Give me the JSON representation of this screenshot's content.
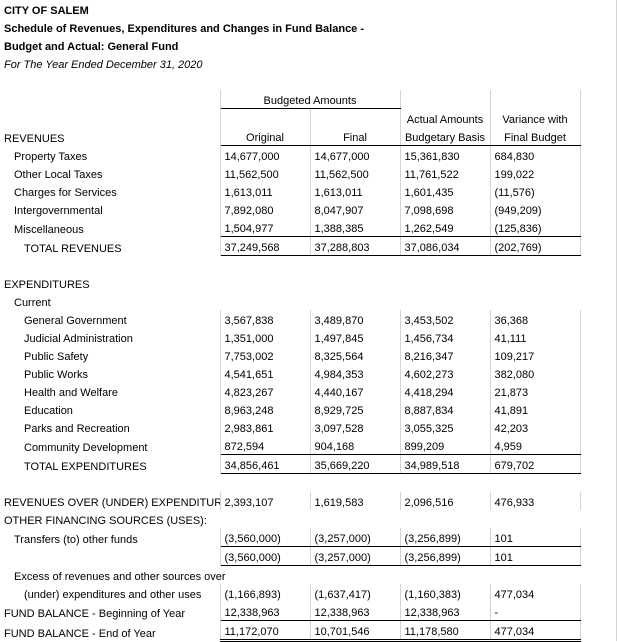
{
  "header": {
    "city": "CITY OF SALEM",
    "title1": "Schedule of Revenues, Expenditures and Changes in Fund Balance -",
    "title2": "Budget and Actual:  General Fund",
    "period": "For The Year Ended December 31, 2020"
  },
  "col_headers": {
    "budgeted": "Budgeted Amounts",
    "original": "Original",
    "final": "Final",
    "actual1": "Actual Amounts",
    "actual2": "Budgetary Basis",
    "var1": "Variance with",
    "var2": "Final Budget"
  },
  "sections": {
    "revenues": "REVENUES",
    "total_revenues": "TOTAL REVENUES",
    "expenditures": "EXPENDITURES",
    "current": "Current",
    "total_expenditures": "TOTAL EXPENDITURES",
    "rev_over": "REVENUES OVER (UNDER) EXPENDITURES",
    "other_fin": "OTHER FINANCING SOURCES (USES):",
    "transfers": "Transfers (to) other funds",
    "excess1": "Excess of revenues and other sources over",
    "excess2": "(under) expenditures and other uses",
    "fb_begin": "FUND BALANCE - Beginning of Year",
    "fb_end": "FUND BALANCE - End of Year"
  },
  "rev": [
    {
      "label": "Property Taxes",
      "o": "14,677,000",
      "f": "14,677,000",
      "a": "15,361,830",
      "v": "684,830"
    },
    {
      "label": "Other Local Taxes",
      "o": "11,562,500",
      "f": "11,562,500",
      "a": "11,761,522",
      "v": "199,022"
    },
    {
      "label": "Charges for Services",
      "o": "1,613,011",
      "f": "1,613,011",
      "a": "1,601,435",
      "v": "(11,576)"
    },
    {
      "label": "Intergovernmental",
      "o": "7,892,080",
      "f": "8,047,907",
      "a": "7,098,698",
      "v": "(949,209)"
    },
    {
      "label": "Miscellaneous",
      "o": "1,504,977",
      "f": "1,388,385",
      "a": "1,262,549",
      "v": "(125,836)"
    }
  ],
  "rev_total": {
    "o": "37,249,568",
    "f": "37,288,803",
    "a": "37,086,034",
    "v": "(202,769)"
  },
  "exp": [
    {
      "label": "General Government",
      "o": "3,567,838",
      "f": "3,489,870",
      "a": "3,453,502",
      "v": "36,368"
    },
    {
      "label": "Judicial Administration",
      "o": "1,351,000",
      "f": "1,497,845",
      "a": "1,456,734",
      "v": "41,111"
    },
    {
      "label": "Public Safety",
      "o": "7,753,002",
      "f": "8,325,564",
      "a": "8,216,347",
      "v": "109,217"
    },
    {
      "label": "Public Works",
      "o": "4,541,651",
      "f": "4,984,353",
      "a": "4,602,273",
      "v": "382,080"
    },
    {
      "label": "Health and Welfare",
      "o": "4,823,267",
      "f": "4,440,167",
      "a": "4,418,294",
      "v": "21,873"
    },
    {
      "label": "Education",
      "o": "8,963,248",
      "f": "8,929,725",
      "a": "8,887,834",
      "v": "41,891"
    },
    {
      "label": "Parks and Recreation",
      "o": "2,983,861",
      "f": "3,097,528",
      "a": "3,055,325",
      "v": "42,203"
    },
    {
      "label": "Community Development",
      "o": "872,594",
      "f": "904,168",
      "a": "899,209",
      "v": "4,959"
    }
  ],
  "exp_total": {
    "o": "34,856,461",
    "f": "35,669,220",
    "a": "34,989,518",
    "v": "679,702"
  },
  "rev_over_exp": {
    "o": "2,393,107",
    "f": "1,619,583",
    "a": "2,096,516",
    "v": "476,933"
  },
  "transfers": {
    "o": "(3,560,000)",
    "f": "(3,257,000)",
    "a": "(3,256,899)",
    "v": "101"
  },
  "transfers_total": {
    "o": "(3,560,000)",
    "f": "(3,257,000)",
    "a": "(3,256,899)",
    "v": "101"
  },
  "excess": {
    "o": "(1,166,893)",
    "f": "(1,637,417)",
    "a": "(1,160,383)",
    "v": "477,034"
  },
  "fb_begin": {
    "o": "12,338,963",
    "f": "12,338,963",
    "a": "12,338,963",
    "v": "-"
  },
  "fb_end": {
    "o": "11,172,070",
    "f": "10,701,546",
    "a": "11,178,580",
    "v": "477,034"
  }
}
